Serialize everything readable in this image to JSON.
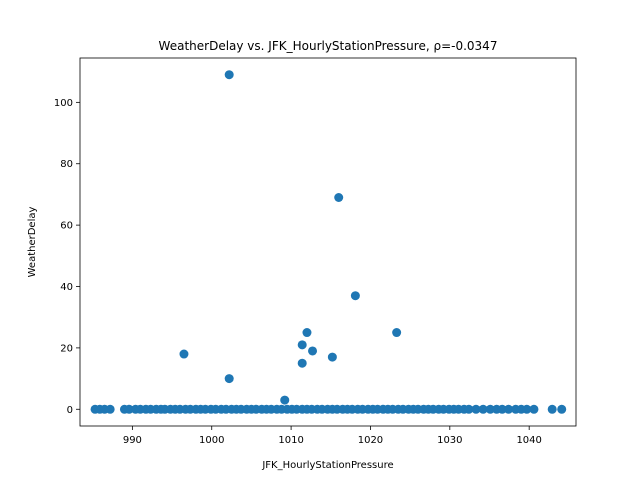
{
  "chart_data": {
    "type": "scatter",
    "title": "WeatherDelay vs. JFK_HourlyStationPressure, ρ=-0.0347",
    "xlabel": "JFK_HourlyStationPressure",
    "ylabel": "WeatherDelay",
    "xlim": [
      983.4,
      1045.9
    ],
    "ylim": [
      -5.45,
      114.45
    ],
    "xticks": [
      990,
      1000,
      1010,
      1020,
      1030,
      1040
    ],
    "yticks": [
      0,
      20,
      40,
      60,
      80,
      100
    ],
    "grid": false,
    "marker_color": "#1f77b4",
    "points": [
      {
        "x": 1002.2,
        "y": 109
      },
      {
        "x": 1016.0,
        "y": 69
      },
      {
        "x": 1018.1,
        "y": 37
      },
      {
        "x": 1012.0,
        "y": 25
      },
      {
        "x": 1023.3,
        "y": 25
      },
      {
        "x": 1011.4,
        "y": 21
      },
      {
        "x": 1012.7,
        "y": 19
      },
      {
        "x": 996.5,
        "y": 18
      },
      {
        "x": 1015.2,
        "y": 17
      },
      {
        "x": 1011.4,
        "y": 15
      },
      {
        "x": 1002.2,
        "y": 10
      },
      {
        "x": 1009.2,
        "y": 3
      },
      {
        "x": 985.3,
        "y": 0
      },
      {
        "x": 985.9,
        "y": 0
      },
      {
        "x": 986.5,
        "y": 0
      },
      {
        "x": 987.2,
        "y": 0
      },
      {
        "x": 989.0,
        "y": 0
      },
      {
        "x": 989.6,
        "y": 0
      },
      {
        "x": 990.4,
        "y": 0
      },
      {
        "x": 991.0,
        "y": 0
      },
      {
        "x": 991.7,
        "y": 0
      },
      {
        "x": 992.3,
        "y": 0
      },
      {
        "x": 993.0,
        "y": 0
      },
      {
        "x": 993.6,
        "y": 0
      },
      {
        "x": 994.1,
        "y": 0
      },
      {
        "x": 994.8,
        "y": 0
      },
      {
        "x": 995.4,
        "y": 0
      },
      {
        "x": 996.0,
        "y": 0
      },
      {
        "x": 996.7,
        "y": 0
      },
      {
        "x": 997.3,
        "y": 0
      },
      {
        "x": 998.0,
        "y": 0
      },
      {
        "x": 998.6,
        "y": 0
      },
      {
        "x": 999.2,
        "y": 0
      },
      {
        "x": 999.9,
        "y": 0
      },
      {
        "x": 1000.5,
        "y": 0
      },
      {
        "x": 1001.2,
        "y": 0
      },
      {
        "x": 1001.8,
        "y": 0
      },
      {
        "x": 1002.5,
        "y": 0
      },
      {
        "x": 1003.1,
        "y": 0
      },
      {
        "x": 1003.7,
        "y": 0
      },
      {
        "x": 1004.4,
        "y": 0
      },
      {
        "x": 1005.0,
        "y": 0
      },
      {
        "x": 1005.6,
        "y": 0
      },
      {
        "x": 1006.3,
        "y": 0
      },
      {
        "x": 1006.9,
        "y": 0
      },
      {
        "x": 1007.5,
        "y": 0
      },
      {
        "x": 1008.2,
        "y": 0
      },
      {
        "x": 1008.8,
        "y": 0
      },
      {
        "x": 1009.5,
        "y": 0
      },
      {
        "x": 1010.1,
        "y": 0
      },
      {
        "x": 1010.7,
        "y": 0
      },
      {
        "x": 1011.4,
        "y": 0
      },
      {
        "x": 1012.0,
        "y": 0
      },
      {
        "x": 1012.6,
        "y": 0
      },
      {
        "x": 1013.3,
        "y": 0
      },
      {
        "x": 1013.9,
        "y": 0
      },
      {
        "x": 1014.6,
        "y": 0
      },
      {
        "x": 1015.2,
        "y": 0
      },
      {
        "x": 1015.8,
        "y": 0
      },
      {
        "x": 1016.5,
        "y": 0
      },
      {
        "x": 1017.1,
        "y": 0
      },
      {
        "x": 1017.7,
        "y": 0
      },
      {
        "x": 1018.4,
        "y": 0
      },
      {
        "x": 1019.0,
        "y": 0
      },
      {
        "x": 1019.7,
        "y": 0
      },
      {
        "x": 1020.3,
        "y": 0
      },
      {
        "x": 1020.9,
        "y": 0
      },
      {
        "x": 1021.6,
        "y": 0
      },
      {
        "x": 1022.2,
        "y": 0
      },
      {
        "x": 1022.8,
        "y": 0
      },
      {
        "x": 1023.5,
        "y": 0
      },
      {
        "x": 1024.1,
        "y": 0
      },
      {
        "x": 1024.8,
        "y": 0
      },
      {
        "x": 1025.4,
        "y": 0
      },
      {
        "x": 1026.0,
        "y": 0
      },
      {
        "x": 1026.7,
        "y": 0
      },
      {
        "x": 1027.3,
        "y": 0
      },
      {
        "x": 1027.9,
        "y": 0
      },
      {
        "x": 1028.6,
        "y": 0
      },
      {
        "x": 1029.2,
        "y": 0
      },
      {
        "x": 1029.9,
        "y": 0
      },
      {
        "x": 1030.5,
        "y": 0
      },
      {
        "x": 1031.1,
        "y": 0
      },
      {
        "x": 1031.8,
        "y": 0
      },
      {
        "x": 1032.4,
        "y": 0
      },
      {
        "x": 1033.3,
        "y": 0
      },
      {
        "x": 1034.2,
        "y": 0
      },
      {
        "x": 1035.1,
        "y": 0
      },
      {
        "x": 1035.9,
        "y": 0
      },
      {
        "x": 1036.6,
        "y": 0
      },
      {
        "x": 1037.4,
        "y": 0
      },
      {
        "x": 1038.3,
        "y": 0
      },
      {
        "x": 1039.0,
        "y": 0
      },
      {
        "x": 1039.7,
        "y": 0
      },
      {
        "x": 1040.6,
        "y": 0
      },
      {
        "x": 1042.9,
        "y": 0
      },
      {
        "x": 1044.1,
        "y": 0
      }
    ]
  }
}
